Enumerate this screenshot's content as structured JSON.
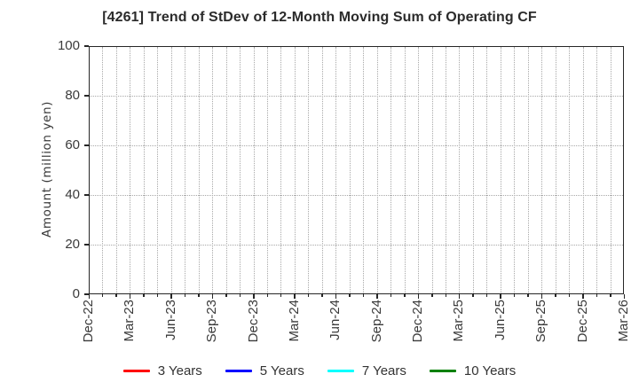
{
  "chart_data": {
    "type": "line",
    "title": "[4261]  Trend of StDev of 12-Month Moving Sum of Operating CF",
    "ylabel": "Amount (million yen)",
    "xlabel": "",
    "ylim": [
      0,
      100
    ],
    "y_ticks": [
      0,
      20,
      40,
      60,
      80,
      100
    ],
    "x_tick_labels": [
      "Dec-22",
      "Mar-23",
      "Jun-23",
      "Sep-23",
      "Dec-23",
      "Mar-24",
      "Jun-24",
      "Sep-24",
      "Dec-24",
      "Mar-25",
      "Jun-25",
      "Sep-25",
      "Dec-25",
      "Mar-26"
    ],
    "months_per_label": 3,
    "total_months": 39,
    "grid": "dotted",
    "legend_position": "bottom",
    "series": [
      {
        "name": "3 Years",
        "color": "#ff0000",
        "values": []
      },
      {
        "name": "5 Years",
        "color": "#0000ff",
        "values": []
      },
      {
        "name": "7 Years",
        "color": "#00ffff",
        "values": []
      },
      {
        "name": "10 Years",
        "color": "#008000",
        "values": []
      }
    ]
  },
  "colors": {
    "background": "#ffffff",
    "spine": "#262626",
    "grid": "#a8a8a8",
    "tick_text": "#3a3a3a",
    "title_text": "#2b2b2b"
  }
}
